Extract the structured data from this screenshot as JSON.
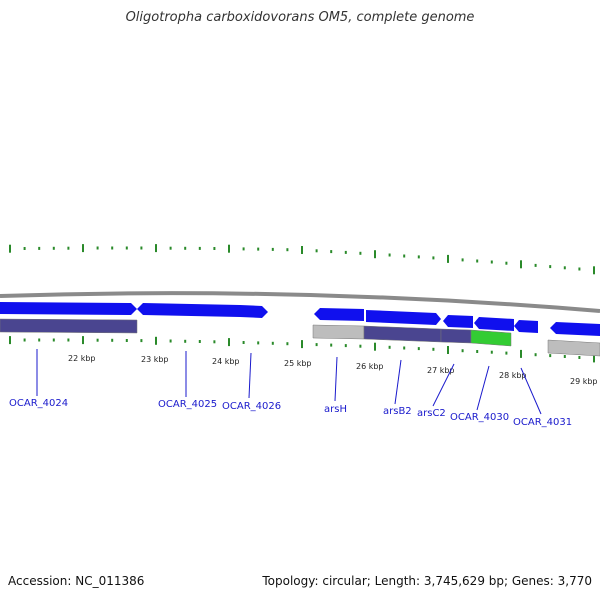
{
  "title": "Oligotropha carboxidovorans OM5, complete genome",
  "footer": {
    "accession": "Accession: NC_011386",
    "summary": "Topology: circular; Length: 3,745,629 bp; Genes: 3,770"
  },
  "colors": {
    "cds": "#1010ee",
    "feature_dark": "#4a4590",
    "feature_gray": "#bdbdbd",
    "feature_green": "#33cc33",
    "backbone": "#8a8a8a",
    "tick": "#2a8a2a",
    "label": "#1a1acc"
  },
  "scale_labels": [
    "22 kbp",
    "23 kbp",
    "24 kbp",
    "25 kbp",
    "26 kbp",
    "27 kbp",
    "28 kbp",
    "29 kbp"
  ],
  "genes": [
    "OCAR_4024",
    "OCAR_4025",
    "OCAR_4026",
    "arsH",
    "arsB2",
    "arsC2",
    "OCAR_4030",
    "OCAR_4031"
  ]
}
